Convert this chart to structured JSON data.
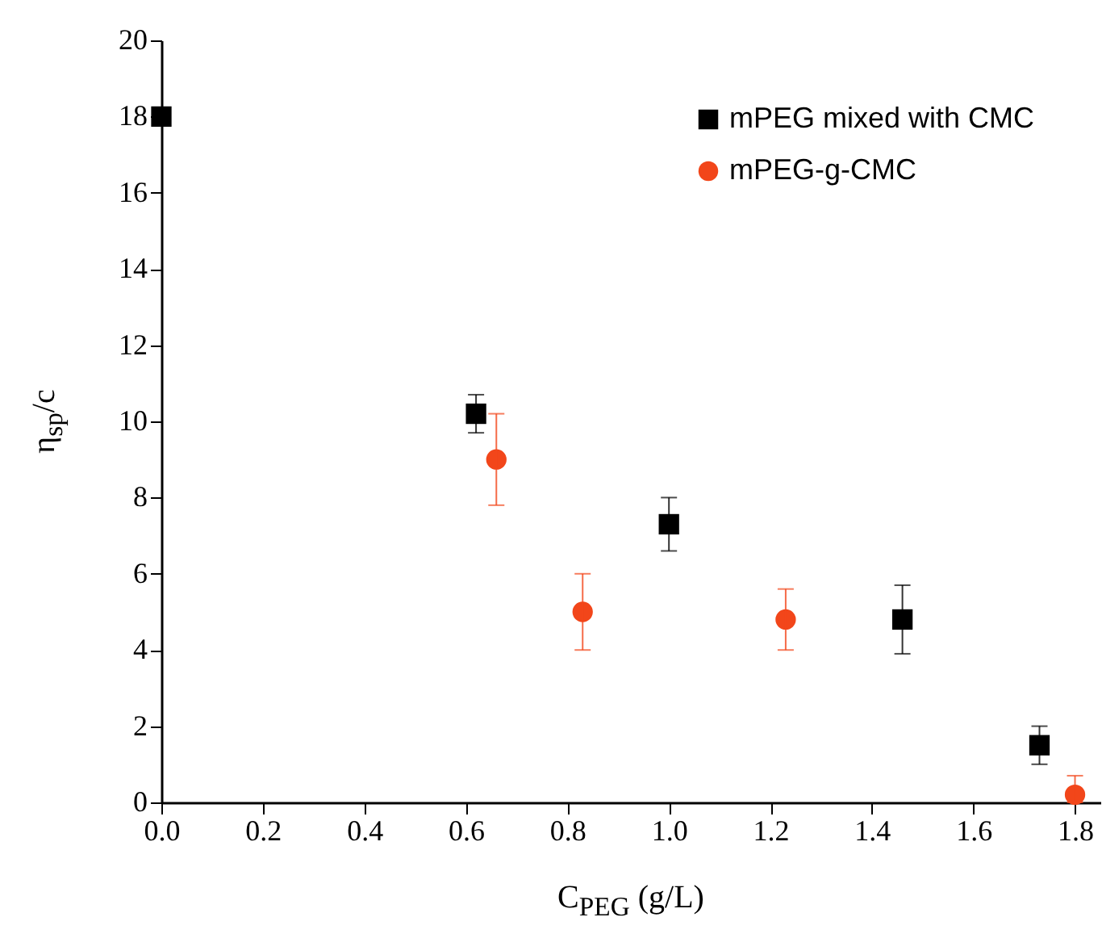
{
  "chart_data": {
    "type": "scatter",
    "xlabel": "C$_{PEG}$ (g/L)",
    "ylabel": "η$_{sp}$/c",
    "xlim": [
      0,
      1.85
    ],
    "xticks": [
      {
        "value": 0,
        "label": "0.0"
      },
      0.2,
      0.4,
      0.6,
      0.8,
      {
        "value": 1,
        "label": "1.0"
      },
      1.2,
      1.4,
      1.6,
      1.8
    ],
    "ylim": [
      0,
      20
    ],
    "yticks": [
      0,
      2,
      4,
      6,
      8,
      10,
      12,
      14,
      16,
      18,
      20
    ],
    "grid": false,
    "legend": "top right",
    "series": [
      {
        "name": "mPEG mixed with CMC",
        "color": "#000000",
        "marker": "square",
        "x": [
          0,
          0.62,
          1.0,
          1.46,
          1.73
        ],
        "values": [
          18,
          10.2,
          7.3,
          4.8,
          1.5
        ],
        "errors": [
          null,
          0.5,
          0.7,
          0.9,
          0.5
        ]
      },
      {
        "name": "mPEG-g-CMC",
        "color": "#f2461a",
        "marker": "circle",
        "x": [
          0.66,
          0.83,
          1.23,
          1.8
        ],
        "values": [
          9.0,
          5.0,
          4.8,
          0.2
        ],
        "errors": [
          1.2,
          1.0,
          0.8,
          [
            0,
            0.7
          ]
        ]
      }
    ]
  }
}
